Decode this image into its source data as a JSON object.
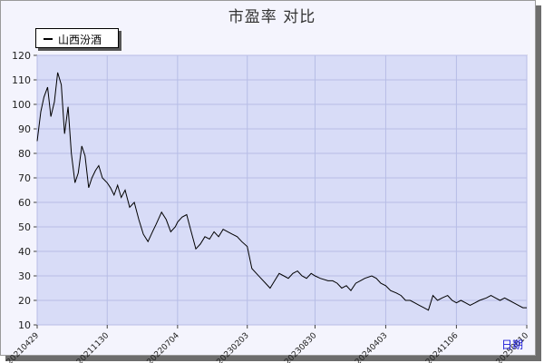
{
  "title": "市盈率  对比",
  "chart_data": {
    "type": "line",
    "title": "市盈率  对比",
    "xlabel": "日期",
    "ylabel": "",
    "ylim": [
      10,
      120
    ],
    "yticks": [
      10,
      20,
      30,
      40,
      50,
      60,
      70,
      80,
      90,
      100,
      110,
      120
    ],
    "xtick_labels": [
      "20210429",
      "20211130",
      "20220704",
      "20230203",
      "20230830",
      "20240403",
      "20241106",
      "20250610"
    ],
    "legend_position": "top-left",
    "grid": true,
    "series": [
      {
        "name": "山西汾酒",
        "color": "#000000",
        "x": [
          "20210429",
          "20210510",
          "20210520",
          "20210531",
          "20210610",
          "20210621",
          "20210701",
          "20210712",
          "20210722",
          "20210802",
          "20210812",
          "20210823",
          "20210902",
          "20210913",
          "20210923",
          "20211004",
          "20211014",
          "20211025",
          "20211104",
          "20211115",
          "20211130",
          "20211210",
          "20211221",
          "20220101",
          "20220112",
          "20220124",
          "20220207",
          "20220221",
          "20220307",
          "20220321",
          "20220404",
          "20220418",
          "20220429",
          "20220516",
          "20220530",
          "20220613",
          "20220627",
          "20220704",
          "20220718",
          "20220801",
          "20220815",
          "20220829",
          "20220912",
          "20220926",
          "20221010",
          "20221024",
          "20221107",
          "20221121",
          "20221205",
          "20221219",
          "20230103",
          "20230117",
          "20230203",
          "20230217",
          "20230303",
          "20230317",
          "20230331",
          "20230414",
          "20230428",
          "20230512",
          "20230526",
          "20230609",
          "20230623",
          "20230707",
          "20230721",
          "20230804",
          "20230818",
          "20230830",
          "20230915",
          "20231009",
          "20231023",
          "20231106",
          "20231120",
          "20231204",
          "20231218",
          "20240102",
          "20240116",
          "20240130",
          "20240220",
          "20240305",
          "20240319",
          "20240403",
          "20240418",
          "20240506",
          "20240520",
          "20240603",
          "20240617",
          "20240701",
          "20240715",
          "20240729",
          "20240812",
          "20240826",
          "20240909",
          "20240923",
          "20241010",
          "20241024",
          "20241106",
          "20241120",
          "20241204",
          "20241218",
          "20250102",
          "20250116",
          "20250206",
          "20250220",
          "20250306",
          "20250320",
          "20250403",
          "20250417",
          "20250501",
          "20250515",
          "20250529",
          "20250610"
        ],
        "values": [
          85,
          97,
          103,
          107,
          95,
          101,
          113,
          108,
          88,
          99,
          80,
          68,
          72,
          83,
          79,
          66,
          70,
          73,
          75,
          70,
          68,
          66,
          63,
          67,
          62,
          65,
          58,
          60,
          53,
          47,
          44,
          48,
          51,
          56,
          53,
          48,
          50,
          52,
          54,
          55,
          48,
          41,
          43,
          46,
          45,
          48,
          46,
          49,
          48,
          47,
          46,
          44,
          42,
          33,
          31,
          29,
          27,
          25,
          28,
          31,
          30,
          29,
          31,
          32,
          30,
          29,
          31,
          30,
          29,
          28,
          28,
          27,
          25,
          26,
          24,
          27,
          28,
          29,
          30,
          29,
          27,
          26,
          24,
          23,
          22,
          20,
          20,
          19,
          18,
          17,
          16,
          22,
          20,
          21,
          22,
          20,
          19,
          20,
          19,
          18,
          19,
          20,
          21,
          22,
          21,
          20,
          21,
          20,
          19,
          18,
          17,
          17
        ]
      }
    ]
  }
}
